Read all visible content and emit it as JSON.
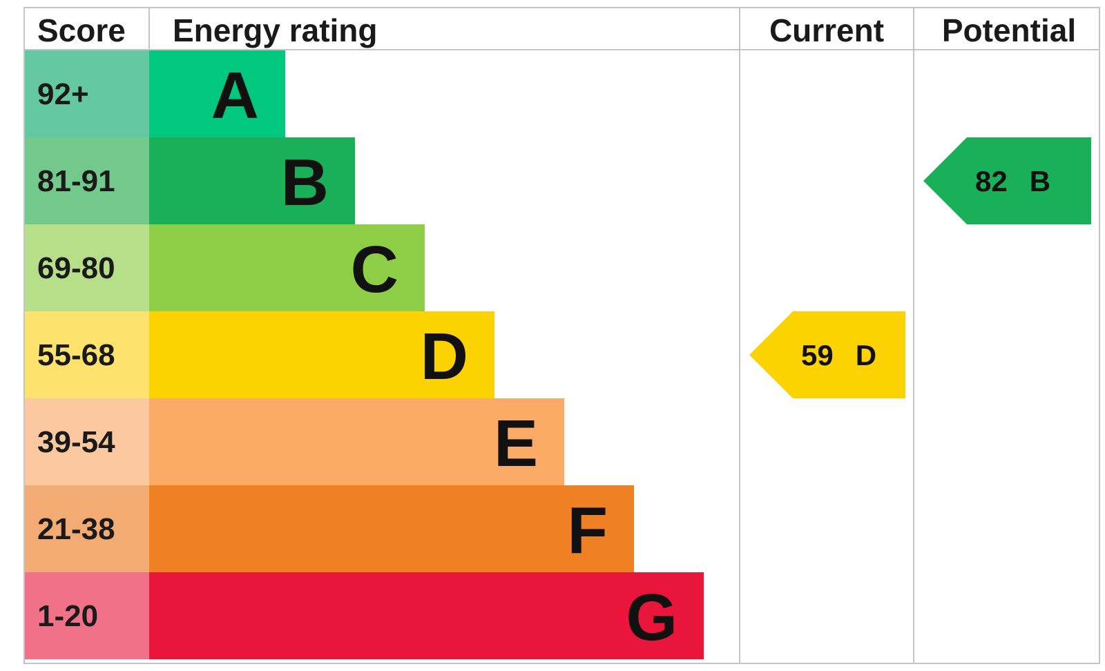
{
  "chart_data": {
    "type": "bar",
    "headers": {
      "score": "Score",
      "energy_rating": "Energy rating",
      "current": "Current",
      "potential": "Potential"
    },
    "bands": [
      {
        "letter": "A",
        "range": "92+",
        "min": 92,
        "max": 100,
        "color": "#02c77f",
        "score_color": "#65c8a5"
      },
      {
        "letter": "B",
        "range": "81-91",
        "min": 81,
        "max": 91,
        "color": "#19b059",
        "score_color": "#72c98b"
      },
      {
        "letter": "C",
        "range": "69-80",
        "min": 69,
        "max": 80,
        "color": "#8dce46",
        "score_color": "#b7de89"
      },
      {
        "letter": "D",
        "range": "55-68",
        "min": 55,
        "max": 68,
        "color": "#fcd300",
        "score_color": "#fde26d"
      },
      {
        "letter": "E",
        "range": "39-54",
        "min": 39,
        "max": 54,
        "color": "#fbaa65",
        "score_color": "#fbc8a0"
      },
      {
        "letter": "F",
        "range": "21-38",
        "min": 21,
        "max": 38,
        "color": "#ef8023",
        "score_color": "#f2ab73"
      },
      {
        "letter": "G",
        "range": "1-20",
        "min": 1,
        "max": 20,
        "color": "#e9153b",
        "score_color": "#f07188"
      }
    ],
    "current": {
      "score": 59,
      "band": "D",
      "label": "59",
      "letter": "D"
    },
    "potential": {
      "score": 82,
      "band": "B",
      "label": "82",
      "letter": "B"
    }
  }
}
